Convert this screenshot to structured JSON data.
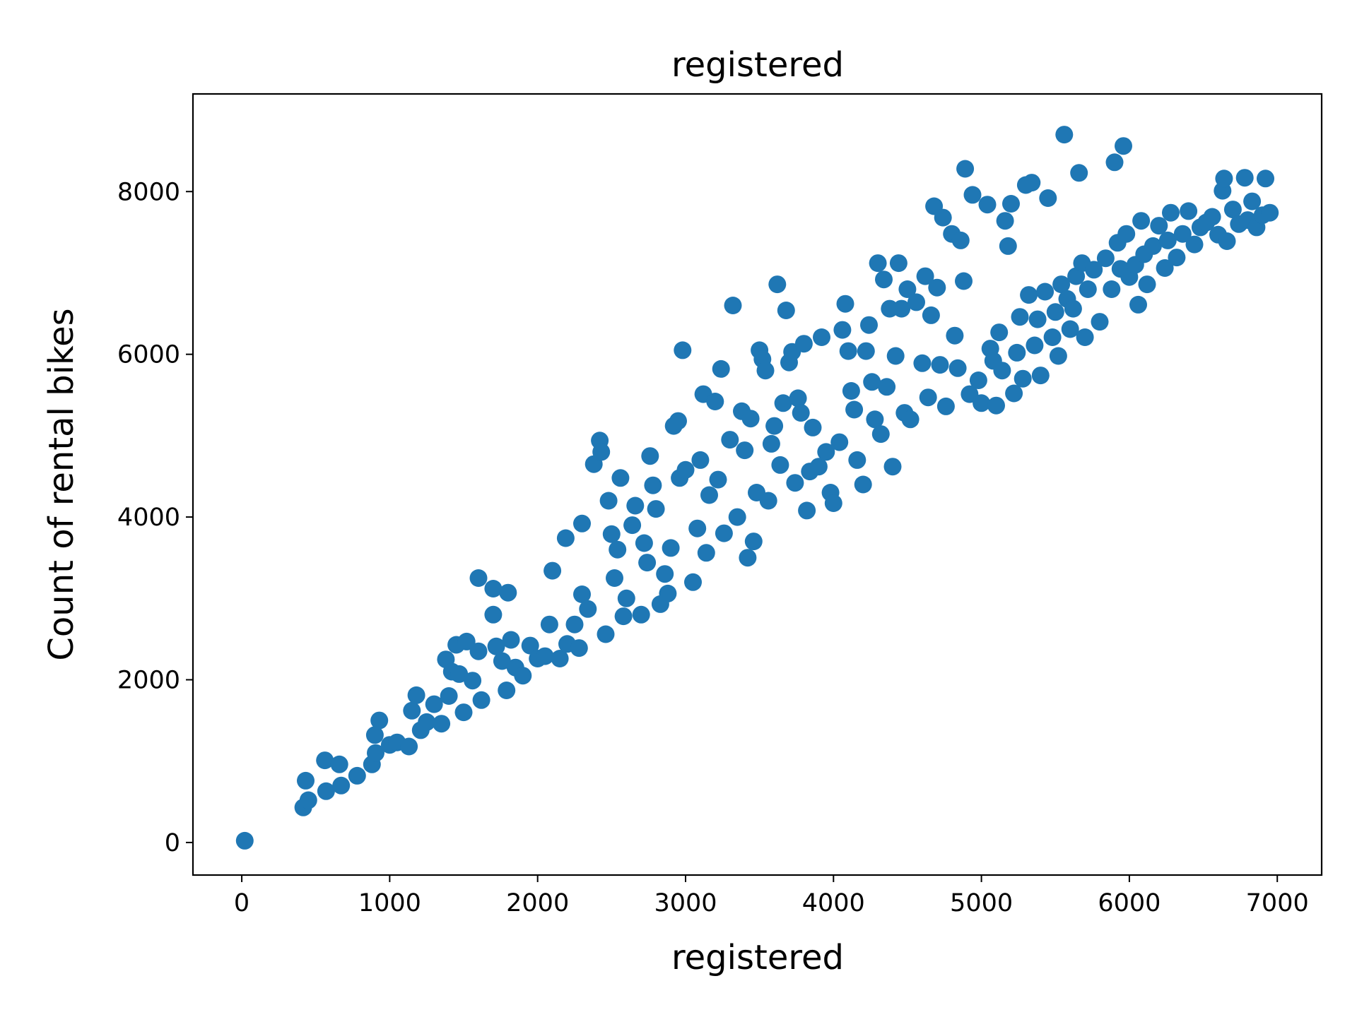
{
  "chart_data": {
    "type": "scatter",
    "title": "registered",
    "xlabel": "registered",
    "ylabel": "Count of rental bikes",
    "xlim": [
      -330,
      7300
    ],
    "ylim": [
      -400,
      9200
    ],
    "xticks": [
      0,
      1000,
      2000,
      3000,
      4000,
      5000,
      6000,
      7000
    ],
    "yticks": [
      0,
      2000,
      4000,
      6000,
      8000
    ],
    "grid": false,
    "colors": {
      "marker": "#1f77b4",
      "frame": "#000000"
    },
    "series": [
      {
        "points": [
          [
            20,
            22
          ],
          [
            416,
            431
          ],
          [
            450,
            520
          ],
          [
            432,
            760
          ],
          [
            570,
            630
          ],
          [
            562,
            1010
          ],
          [
            660,
            960
          ],
          [
            672,
            700
          ],
          [
            780,
            820
          ],
          [
            880,
            960
          ],
          [
            905,
            1100
          ],
          [
            930,
            1500
          ],
          [
            900,
            1320
          ],
          [
            1000,
            1200
          ],
          [
            1050,
            1230
          ],
          [
            1130,
            1180
          ],
          [
            1150,
            1620
          ],
          [
            1180,
            1810
          ],
          [
            1210,
            1380
          ],
          [
            1250,
            1480
          ],
          [
            1300,
            1700
          ],
          [
            1350,
            1460
          ],
          [
            1400,
            1800
          ],
          [
            1380,
            2250
          ],
          [
            1420,
            2100
          ],
          [
            1450,
            2430
          ],
          [
            1470,
            2070
          ],
          [
            1500,
            1600
          ],
          [
            1520,
            2470
          ],
          [
            1560,
            1990
          ],
          [
            1600,
            2350
          ],
          [
            1620,
            1750
          ],
          [
            1600,
            3250
          ],
          [
            1700,
            3120
          ],
          [
            1700,
            2800
          ],
          [
            1720,
            2410
          ],
          [
            1760,
            2230
          ],
          [
            1790,
            1870
          ],
          [
            1820,
            2490
          ],
          [
            1800,
            3070
          ],
          [
            1850,
            2150
          ],
          [
            1900,
            2050
          ],
          [
            1950,
            2420
          ],
          [
            2000,
            2260
          ],
          [
            2050,
            2290
          ],
          [
            2080,
            2680
          ],
          [
            2100,
            3340
          ],
          [
            2150,
            2260
          ],
          [
            2190,
            3740
          ],
          [
            2200,
            2440
          ],
          [
            2250,
            2680
          ],
          [
            2300,
            3920
          ],
          [
            2280,
            2390
          ],
          [
            2300,
            3050
          ],
          [
            2340,
            2870
          ],
          [
            2380,
            4650
          ],
          [
            2420,
            4940
          ],
          [
            2430,
            4800
          ],
          [
            2460,
            2560
          ],
          [
            2480,
            4200
          ],
          [
            2500,
            3790
          ],
          [
            2520,
            3250
          ],
          [
            2540,
            3600
          ],
          [
            2560,
            4480
          ],
          [
            2580,
            2780
          ],
          [
            2600,
            3000
          ],
          [
            2640,
            3900
          ],
          [
            2660,
            4140
          ],
          [
            2700,
            2800
          ],
          [
            2720,
            3680
          ],
          [
            2740,
            3440
          ],
          [
            2760,
            4750
          ],
          [
            2780,
            4390
          ],
          [
            2800,
            4100
          ],
          [
            2830,
            2930
          ],
          [
            2860,
            3300
          ],
          [
            2880,
            3060
          ],
          [
            2900,
            3620
          ],
          [
            2920,
            5120
          ],
          [
            2950,
            5180
          ],
          [
            2960,
            4480
          ],
          [
            2980,
            6050
          ],
          [
            3000,
            4580
          ],
          [
            3050,
            3200
          ],
          [
            3080,
            3860
          ],
          [
            3100,
            4700
          ],
          [
            3120,
            5510
          ],
          [
            3140,
            3560
          ],
          [
            3160,
            4270
          ],
          [
            3200,
            5420
          ],
          [
            3220,
            4460
          ],
          [
            3240,
            5820
          ],
          [
            3260,
            3800
          ],
          [
            3300,
            4950
          ],
          [
            3320,
            6600
          ],
          [
            3350,
            4000
          ],
          [
            3380,
            5300
          ],
          [
            3400,
            4820
          ],
          [
            3420,
            3500
          ],
          [
            3440,
            5210
          ],
          [
            3460,
            3700
          ],
          [
            3480,
            4300
          ],
          [
            3500,
            6050
          ],
          [
            3520,
            5940
          ],
          [
            3540,
            5800
          ],
          [
            3560,
            4200
          ],
          [
            3580,
            4900
          ],
          [
            3600,
            5120
          ],
          [
            3620,
            6860
          ],
          [
            3640,
            4640
          ],
          [
            3660,
            5400
          ],
          [
            3680,
            6540
          ],
          [
            3700,
            5900
          ],
          [
            3720,
            6030
          ],
          [
            3740,
            4420
          ],
          [
            3760,
            5460
          ],
          [
            3780,
            5280
          ],
          [
            3800,
            6130
          ],
          [
            3820,
            4080
          ],
          [
            3840,
            4560
          ],
          [
            3860,
            5100
          ],
          [
            3900,
            4620
          ],
          [
            3920,
            6210
          ],
          [
            3950,
            4800
          ],
          [
            3980,
            4300
          ],
          [
            4000,
            4170
          ],
          [
            4040,
            4920
          ],
          [
            4060,
            6300
          ],
          [
            4080,
            6620
          ],
          [
            4100,
            6040
          ],
          [
            4120,
            5550
          ],
          [
            4140,
            5320
          ],
          [
            4160,
            4700
          ],
          [
            4200,
            4400
          ],
          [
            4220,
            6040
          ],
          [
            4240,
            6360
          ],
          [
            4260,
            5660
          ],
          [
            4280,
            5200
          ],
          [
            4300,
            7120
          ],
          [
            4320,
            5020
          ],
          [
            4340,
            6920
          ],
          [
            4360,
            5600
          ],
          [
            4380,
            6560
          ],
          [
            4400,
            4620
          ],
          [
            4420,
            5980
          ],
          [
            4440,
            7120
          ],
          [
            4460,
            6560
          ],
          [
            4480,
            5280
          ],
          [
            4500,
            6800
          ],
          [
            4520,
            5200
          ],
          [
            4560,
            6640
          ],
          [
            4600,
            5890
          ],
          [
            4620,
            6960
          ],
          [
            4640,
            5470
          ],
          [
            4660,
            6480
          ],
          [
            4680,
            7820
          ],
          [
            4700,
            6820
          ],
          [
            4720,
            5870
          ],
          [
            4740,
            7680
          ],
          [
            4760,
            5360
          ],
          [
            4800,
            7480
          ],
          [
            4820,
            6230
          ],
          [
            4840,
            5830
          ],
          [
            4860,
            7400
          ],
          [
            4880,
            6900
          ],
          [
            4890,
            8280
          ],
          [
            4920,
            5510
          ],
          [
            4940,
            7960
          ],
          [
            4980,
            5680
          ],
          [
            5000,
            5400
          ],
          [
            5040,
            7840
          ],
          [
            5060,
            6070
          ],
          [
            5080,
            5920
          ],
          [
            5100,
            5370
          ],
          [
            5120,
            6270
          ],
          [
            5140,
            5800
          ],
          [
            5160,
            7640
          ],
          [
            5180,
            7330
          ],
          [
            5200,
            7850
          ],
          [
            5220,
            5520
          ],
          [
            5240,
            6020
          ],
          [
            5260,
            6460
          ],
          [
            5280,
            5700
          ],
          [
            5300,
            8080
          ],
          [
            5320,
            6730
          ],
          [
            5340,
            8110
          ],
          [
            5360,
            6110
          ],
          [
            5380,
            6430
          ],
          [
            5400,
            5740
          ],
          [
            5430,
            6770
          ],
          [
            5450,
            7920
          ],
          [
            5480,
            6210
          ],
          [
            5500,
            6520
          ],
          [
            5520,
            5980
          ],
          [
            5540,
            6860
          ],
          [
            5560,
            8700
          ],
          [
            5580,
            6680
          ],
          [
            5600,
            6310
          ],
          [
            5620,
            6560
          ],
          [
            5640,
            6960
          ],
          [
            5660,
            8230
          ],
          [
            5680,
            7120
          ],
          [
            5700,
            6210
          ],
          [
            5720,
            6800
          ],
          [
            5760,
            7040
          ],
          [
            5800,
            6400
          ],
          [
            5840,
            7180
          ],
          [
            5880,
            6800
          ],
          [
            5900,
            8360
          ],
          [
            5920,
            7370
          ],
          [
            5940,
            7050
          ],
          [
            5960,
            8560
          ],
          [
            5980,
            7480
          ],
          [
            6000,
            6950
          ],
          [
            6040,
            7100
          ],
          [
            6060,
            6610
          ],
          [
            6080,
            7640
          ],
          [
            6100,
            7230
          ],
          [
            6120,
            6860
          ],
          [
            6160,
            7330
          ],
          [
            6200,
            7580
          ],
          [
            6240,
            7060
          ],
          [
            6260,
            7400
          ],
          [
            6280,
            7740
          ],
          [
            6320,
            7190
          ],
          [
            6360,
            7480
          ],
          [
            6400,
            7760
          ],
          [
            6440,
            7350
          ],
          [
            6480,
            7560
          ],
          [
            6520,
            7620
          ],
          [
            6560,
            7690
          ],
          [
            6600,
            7470
          ],
          [
            6630,
            8010
          ],
          [
            6640,
            8160
          ],
          [
            6660,
            7390
          ],
          [
            6700,
            7780
          ],
          [
            6740,
            7600
          ],
          [
            6780,
            8170
          ],
          [
            6800,
            7650
          ],
          [
            6830,
            7880
          ],
          [
            6860,
            7560
          ],
          [
            6900,
            7710
          ],
          [
            6920,
            8160
          ],
          [
            6950,
            7740
          ]
        ]
      }
    ]
  }
}
